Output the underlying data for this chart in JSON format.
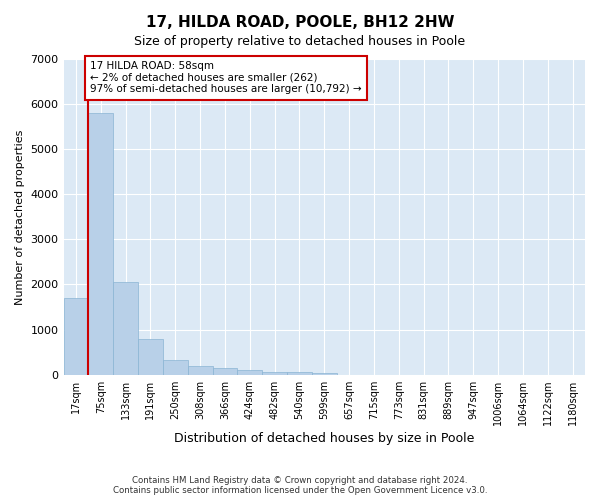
{
  "title": "17, HILDA ROAD, POOLE, BH12 2HW",
  "subtitle": "Size of property relative to detached houses in Poole",
  "xlabel": "Distribution of detached houses by size in Poole",
  "ylabel": "Number of detached properties",
  "bar_color": "#b8d0e8",
  "bar_edge_color": "#8ab4d4",
  "background_color": "#dce9f5",
  "grid_color": "#ffffff",
  "fig_background": "#ffffff",
  "categories": [
    "17sqm",
    "75sqm",
    "133sqm",
    "191sqm",
    "250sqm",
    "308sqm",
    "366sqm",
    "424sqm",
    "482sqm",
    "540sqm",
    "599sqm",
    "657sqm",
    "715sqm",
    "773sqm",
    "831sqm",
    "889sqm",
    "947sqm",
    "1006sqm",
    "1064sqm",
    "1122sqm",
    "1180sqm"
  ],
  "values": [
    1700,
    5800,
    2050,
    800,
    320,
    200,
    140,
    100,
    70,
    55,
    40,
    0,
    0,
    0,
    0,
    0,
    0,
    0,
    0,
    0,
    0
  ],
  "ylim": [
    0,
    7000
  ],
  "yticks": [
    0,
    1000,
    2000,
    3000,
    4000,
    5000,
    6000,
    7000
  ],
  "red_line_x": 0.5,
  "red_line_color": "#cc0000",
  "annotation_line1": "17 HILDA ROAD: 58sqm",
  "annotation_line2": "← 2% of detached houses are smaller (262)",
  "annotation_line3": "97% of semi-detached houses are larger (10,792) →",
  "annotation_box_color": "#ffffff",
  "annotation_box_edge_color": "#cc0000",
  "footer_line1": "Contains HM Land Registry data © Crown copyright and database right 2024.",
  "footer_line2": "Contains public sector information licensed under the Open Government Licence v3.0."
}
